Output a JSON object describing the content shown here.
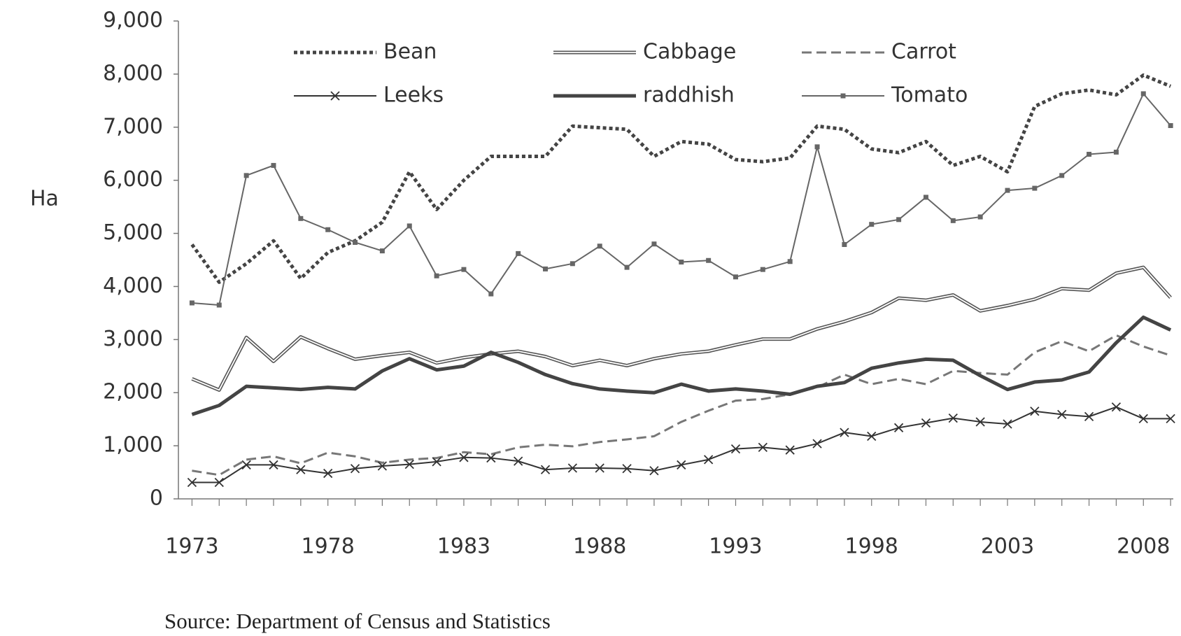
{
  "chart_data": {
    "type": "line",
    "y_label": "Ha",
    "source": "Source: Department of Census and Statistics",
    "x": [
      1973,
      1974,
      1975,
      1976,
      1977,
      1978,
      1979,
      1980,
      1981,
      1982,
      1983,
      1984,
      1985,
      1986,
      1987,
      1988,
      1989,
      1990,
      1991,
      1992,
      1993,
      1994,
      1995,
      1996,
      1997,
      1998,
      1999,
      2000,
      2001,
      2002,
      2003,
      2004,
      2005,
      2006,
      2007,
      2008,
      2009
    ],
    "xlim": [
      1972.5,
      2009.1
    ],
    "xticks": [
      1973,
      1978,
      1983,
      1988,
      1993,
      1998,
      2003,
      2008
    ],
    "ylim": [
      0,
      9000
    ],
    "yticks": [
      0,
      {
        "value": 1000,
        "label": "1,000"
      },
      {
        "value": 2000,
        "label": "2,000"
      },
      {
        "value": 3000,
        "label": "3,000"
      },
      {
        "value": 4000,
        "label": "4,000"
      },
      {
        "value": 5000,
        "label": "5,000"
      },
      {
        "value": 6000,
        "label": "6,000"
      },
      {
        "value": 7000,
        "label": "7,000"
      },
      {
        "value": 8000,
        "label": "8,000"
      },
      {
        "value": 9000,
        "label": "9,000"
      }
    ],
    "grid": false,
    "legend": "top",
    "series": [
      {
        "name": "Bean",
        "color": "#444",
        "line_style": "dotted",
        "marker": "none",
        "values": [
          4790,
          4080,
          4430,
          4860,
          4150,
          4640,
          4860,
          5210,
          6160,
          5450,
          6000,
          6450,
          6450,
          6450,
          7020,
          6990,
          6960,
          6450,
          6730,
          6680,
          6390,
          6350,
          6420,
          7020,
          6960,
          6590,
          6520,
          6730,
          6280,
          6450,
          6160,
          7390,
          7630,
          7700,
          7610,
          7980,
          7770
        ]
      },
      {
        "name": "Cabbage",
        "color": "#555",
        "line_style": "double",
        "marker": "none",
        "values": [
          2260,
          2050,
          3040,
          2590,
          3050,
          2830,
          2630,
          2700,
          2760,
          2560,
          2660,
          2730,
          2780,
          2680,
          2510,
          2610,
          2510,
          2640,
          2730,
          2780,
          2900,
          3010,
          3010,
          3200,
          3340,
          3510,
          3780,
          3740,
          3840,
          3540,
          3640,
          3760,
          3960,
          3930,
          4250,
          4360,
          3790
        ]
      },
      {
        "name": "Carrot",
        "color": "#777",
        "line_style": "dashed",
        "marker": "none",
        "values": [
          530,
          450,
          740,
          800,
          670,
          870,
          800,
          680,
          740,
          770,
          880,
          840,
          970,
          1020,
          990,
          1070,
          1120,
          1180,
          1450,
          1660,
          1850,
          1880,
          1970,
          2100,
          2340,
          2160,
          2260,
          2160,
          2410,
          2370,
          2340,
          2760,
          2970,
          2780,
          3080,
          2870,
          2700
        ]
      },
      {
        "name": "Leeks",
        "color": "#333",
        "line_style": "solid",
        "marker": "x",
        "values": [
          310,
          310,
          640,
          640,
          550,
          480,
          570,
          620,
          650,
          700,
          780,
          770,
          710,
          550,
          580,
          580,
          570,
          530,
          640,
          740,
          940,
          970,
          920,
          1040,
          1250,
          1180,
          1340,
          1430,
          1520,
          1450,
          1410,
          1650,
          1590,
          1550,
          1730,
          1510,
          1510
        ]
      },
      {
        "name": "raddhish",
        "color": "#444",
        "line_style": "thick",
        "marker": "none",
        "values": [
          1590,
          1760,
          2120,
          2090,
          2060,
          2100,
          2070,
          2410,
          2640,
          2430,
          2500,
          2760,
          2570,
          2340,
          2170,
          2070,
          2030,
          2000,
          2160,
          2030,
          2070,
          2030,
          1970,
          2120,
          2190,
          2460,
          2560,
          2630,
          2610,
          2320,
          2060,
          2200,
          2240,
          2390,
          2940,
          3420,
          3180
        ]
      },
      {
        "name": "Tomato",
        "color": "#666",
        "line_style": "solid",
        "marker": "square",
        "values": [
          3690,
          3650,
          6090,
          6280,
          5280,
          5070,
          4830,
          4670,
          5140,
          4200,
          4320,
          3860,
          4620,
          4330,
          4430,
          4760,
          4360,
          4800,
          4460,
          4490,
          4180,
          4320,
          4470,
          6630,
          4790,
          5170,
          5260,
          5680,
          5240,
          5310,
          5810,
          5850,
          6090,
          6490,
          6530,
          7630,
          7030
        ]
      }
    ]
  }
}
